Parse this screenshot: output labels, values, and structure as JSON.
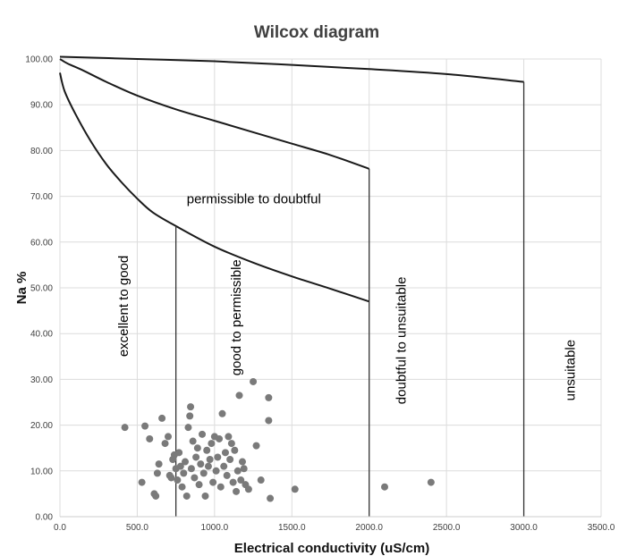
{
  "chart_data": {
    "type": "scatter",
    "title": "Wilcox diagram",
    "xlabel": "Electrical conductivity (uS/cm)",
    "ylabel": "Na %",
    "xlim": [
      0,
      3500
    ],
    "ylim": [
      0,
      100
    ],
    "x_ticks": [
      "0.0",
      "500.0",
      "1000.0",
      "1500.0",
      "2000.0",
      "2500.0",
      "3000.0",
      "3500.0"
    ],
    "y_ticks": [
      "0.00",
      "10.00",
      "20.00",
      "30.00",
      "40.00",
      "50.00",
      "60.00",
      "70.00",
      "80.00",
      "90.00",
      "100.00"
    ],
    "grid": true,
    "legend": "none",
    "colors": {
      "points": "#7a7a7a",
      "curves": "#1a1a1a",
      "grid": "#dcdcdc"
    },
    "zone_labels": [
      "excellent to good",
      "good to permissible",
      "permissible to doubtful",
      "doubtful to unsuitable",
      "unsuitable"
    ],
    "boundary_curves": [
      {
        "points": [
          [
            0,
            100
          ],
          [
            50,
            99
          ],
          [
            150,
            97.5
          ],
          [
            300,
            95
          ],
          [
            500,
            92
          ],
          [
            750,
            89
          ],
          [
            1000,
            86.5
          ],
          [
            1250,
            84
          ],
          [
            1500,
            81.5
          ],
          [
            1750,
            79
          ],
          [
            2000,
            76
          ]
        ]
      },
      {
        "points": [
          [
            0,
            97
          ],
          [
            30,
            93
          ],
          [
            100,
            88
          ],
          [
            200,
            82
          ],
          [
            300,
            77
          ],
          [
            400,
            73
          ],
          [
            500,
            69.5
          ],
          [
            600,
            66.5
          ],
          [
            750,
            63.5
          ],
          [
            1000,
            59
          ],
          [
            1250,
            55.5
          ],
          [
            1500,
            52.5
          ],
          [
            1750,
            49.8
          ],
          [
            2000,
            47
          ]
        ]
      },
      {
        "points": [
          [
            0,
            100.5
          ],
          [
            500,
            100
          ],
          [
            1000,
            99.5
          ],
          [
            1500,
            98.7
          ],
          [
            2000,
            97.8
          ],
          [
            2500,
            96.7
          ],
          [
            3000,
            95
          ]
        ]
      }
    ],
    "boundary_lines": [
      {
        "x": 750,
        "y_top": 63.5
      },
      {
        "x": 2000,
        "y_top": 76
      },
      {
        "x": 3000,
        "y_top": 95
      }
    ],
    "points": [
      [
        420,
        19.5
      ],
      [
        530,
        7.5
      ],
      [
        550,
        19.8
      ],
      [
        580,
        17
      ],
      [
        610,
        5
      ],
      [
        620,
        4.5
      ],
      [
        630,
        9.5
      ],
      [
        640,
        11.5
      ],
      [
        660,
        21.5
      ],
      [
        680,
        16
      ],
      [
        700,
        17.5
      ],
      [
        710,
        9
      ],
      [
        720,
        8.5
      ],
      [
        730,
        12.5
      ],
      [
        740,
        13.5
      ],
      [
        750,
        10.5
      ],
      [
        760,
        8
      ],
      [
        770,
        14
      ],
      [
        780,
        11
      ],
      [
        790,
        6.5
      ],
      [
        800,
        9.5
      ],
      [
        810,
        12
      ],
      [
        820,
        4.5
      ],
      [
        830,
        19.5
      ],
      [
        840,
        22
      ],
      [
        845,
        24
      ],
      [
        850,
        10.5
      ],
      [
        860,
        16.5
      ],
      [
        870,
        8.5
      ],
      [
        880,
        13
      ],
      [
        890,
        15
      ],
      [
        900,
        7
      ],
      [
        910,
        11.5
      ],
      [
        920,
        18
      ],
      [
        930,
        9.5
      ],
      [
        940,
        4.5
      ],
      [
        950,
        14.5
      ],
      [
        960,
        11
      ],
      [
        970,
        12.5
      ],
      [
        980,
        16
      ],
      [
        990,
        7.5
      ],
      [
        1000,
        17.5
      ],
      [
        1010,
        10
      ],
      [
        1020,
        13
      ],
      [
        1030,
        17
      ],
      [
        1040,
        6.5
      ],
      [
        1050,
        22.5
      ],
      [
        1060,
        11
      ],
      [
        1070,
        14
      ],
      [
        1080,
        9
      ],
      [
        1090,
        17.5
      ],
      [
        1100,
        12.5
      ],
      [
        1110,
        16
      ],
      [
        1120,
        7.5
      ],
      [
        1130,
        14.5
      ],
      [
        1140,
        5.5
      ],
      [
        1150,
        10
      ],
      [
        1160,
        26.5
      ],
      [
        1170,
        8
      ],
      [
        1180,
        12
      ],
      [
        1190,
        10.5
      ],
      [
        1200,
        7
      ],
      [
        1220,
        6
      ],
      [
        1250,
        29.5
      ],
      [
        1270,
        15.5
      ],
      [
        1300,
        8
      ],
      [
        1350,
        21
      ],
      [
        1350,
        26
      ],
      [
        1360,
        4
      ],
      [
        1520,
        6
      ],
      [
        2100,
        6.5
      ],
      [
        2400,
        7.5
      ]
    ]
  }
}
